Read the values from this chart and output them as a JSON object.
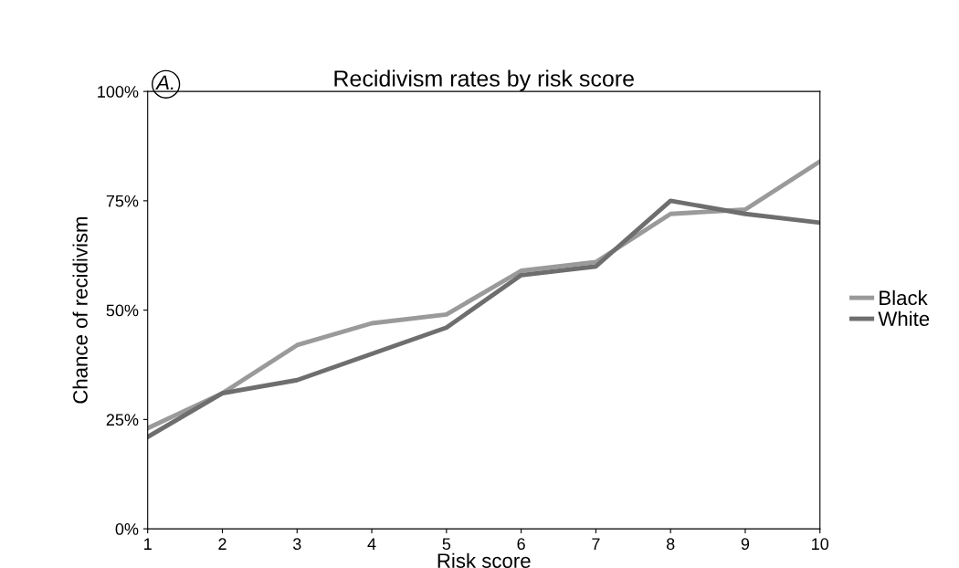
{
  "chart_data": {
    "type": "line",
    "title": "Recidivism rates by risk score",
    "xlabel": "Risk score",
    "ylabel": "Chance of recidivism",
    "annotations": [
      "A."
    ],
    "x": [
      1,
      2,
      3,
      4,
      5,
      6,
      7,
      8,
      9,
      10
    ],
    "series": [
      {
        "name": "Black",
        "color": "#9a9a9a",
        "values": [
          23,
          31,
          42,
          47,
          49,
          59,
          61,
          72,
          73,
          84
        ]
      },
      {
        "name": "White",
        "color": "#6e6e6e",
        "values": [
          21,
          31,
          34,
          40,
          46,
          58,
          60,
          75,
          72,
          70
        ]
      }
    ],
    "xlim": [
      1,
      10
    ],
    "xticks": [
      1,
      2,
      3,
      4,
      5,
      6,
      7,
      8,
      9,
      10
    ],
    "ylim": [
      0,
      100
    ],
    "yticks": [
      {
        "value": 0,
        "label": "0%"
      },
      {
        "value": 25,
        "label": "25%"
      },
      {
        "value": 50,
        "label": "50%"
      },
      {
        "value": 75,
        "label": "75%"
      },
      {
        "value": 100,
        "label": "100%"
      }
    ],
    "grid": false,
    "legend": "right",
    "marker": "none",
    "line_style": "solid"
  }
}
